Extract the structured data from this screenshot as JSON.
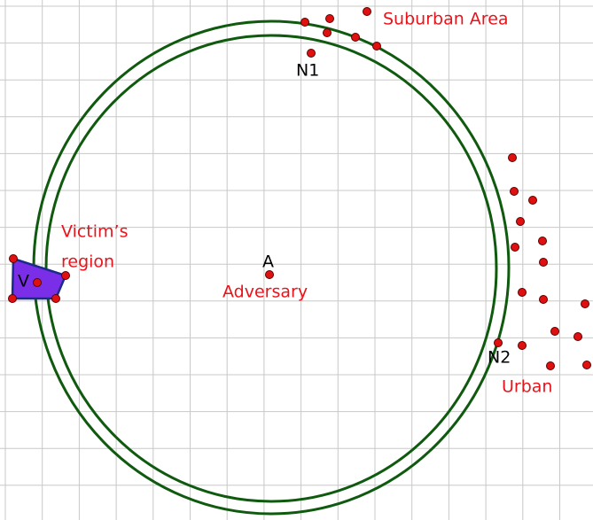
{
  "labels": {
    "suburban": "Suburban Area",
    "n1": "N1",
    "victim_line1": "Victim’s",
    "victim_line2": "region",
    "a": "A",
    "adversary": "Adversary",
    "n2": "N2",
    "urban": "Urban",
    "v": "V"
  }
}
